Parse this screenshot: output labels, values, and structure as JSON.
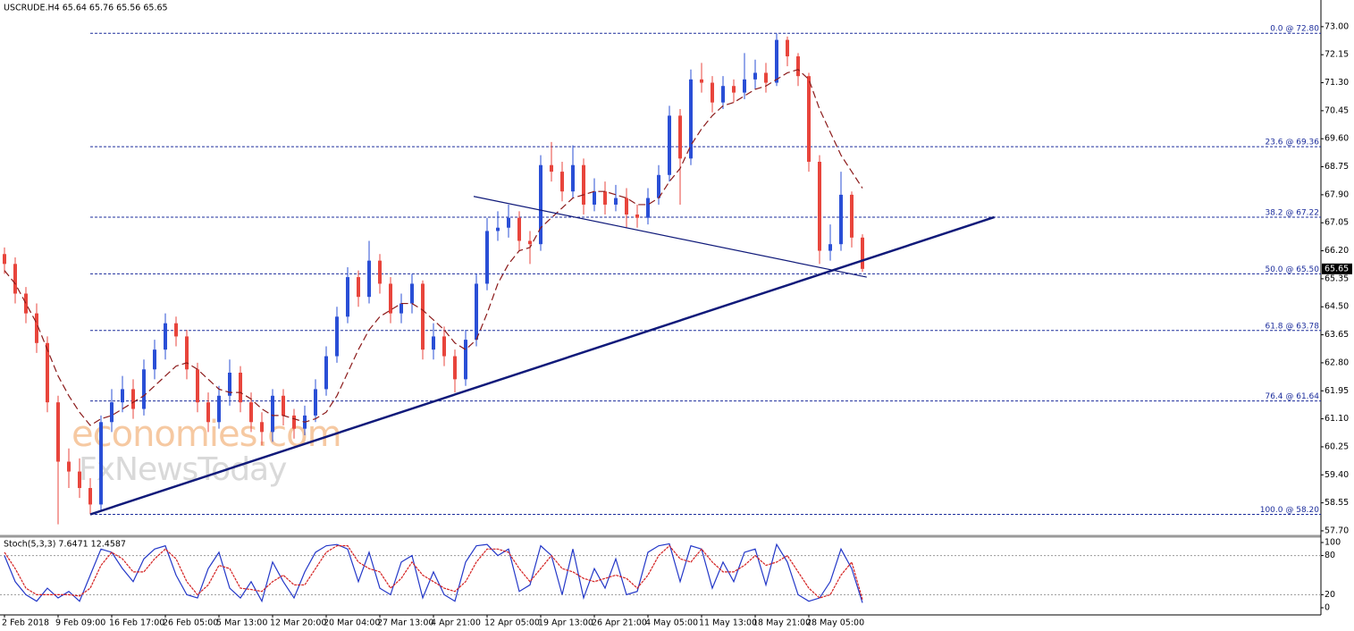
{
  "chart_data": {
    "type": "candlestick",
    "title": "USCRUDE.H4  65.64 65.76 65.56 65.65",
    "categories": [
      "2 Feb 2018",
      null,
      null,
      null,
      null,
      "9 Feb 09:00",
      null,
      null,
      null,
      null,
      "16 Feb 17:00",
      null,
      null,
      null,
      null,
      "26 Feb 05:00",
      null,
      null,
      null,
      null,
      "5 Mar 13:00",
      null,
      null,
      null,
      null,
      "12 Mar 20:00",
      null,
      null,
      null,
      null,
      "20 Mar 04:00",
      null,
      null,
      null,
      null,
      "27 Mar 13:00",
      null,
      null,
      null,
      null,
      "4 Apr 21:00",
      null,
      null,
      null,
      null,
      "12 Apr 05:00",
      null,
      null,
      null,
      null,
      "19 Apr 13:00",
      null,
      null,
      null,
      null,
      "26 Apr 21:00",
      null,
      null,
      null,
      null,
      "4 May 05:00",
      null,
      null,
      null,
      null,
      "11 May 13:00",
      null,
      null,
      null,
      null,
      "18 May 21:00",
      null,
      null,
      null,
      null,
      "28 May 05:00",
      null,
      null,
      null,
      null,
      null
    ],
    "open": [
      66.1,
      65.8,
      64.9,
      64.3,
      63.4,
      61.6,
      59.8,
      59.5,
      59.0,
      58.5,
      61.0,
      61.6,
      62.0,
      61.4,
      62.6,
      63.2,
      64.0,
      63.6,
      62.6,
      61.6,
      61.0,
      61.8,
      62.5,
      61.6,
      61.0,
      60.7,
      61.8,
      61.2,
      60.8,
      61.2,
      62.0,
      63.0,
      64.2,
      65.4,
      64.8,
      65.9,
      65.2,
      64.3,
      64.6,
      65.2,
      63.2,
      63.6,
      63.0,
      62.3,
      63.5,
      65.2,
      66.8,
      66.9,
      67.2,
      66.5,
      66.4,
      68.8,
      68.6,
      68.0,
      68.8,
      67.6,
      68.0,
      67.6,
      67.8,
      67.3,
      67.2,
      67.8,
      68.5,
      70.3,
      69.0,
      71.4,
      71.3,
      70.7,
      71.2,
      71.0,
      71.4,
      71.6,
      71.3,
      72.6,
      72.1,
      71.5,
      68.9,
      66.2,
      66.4,
      67.9,
      66.6
    ],
    "high": [
      66.3,
      66.0,
      65.1,
      64.6,
      63.6,
      61.8,
      60.2,
      59.9,
      59.3,
      61.2,
      62.0,
      62.4,
      62.3,
      62.9,
      63.5,
      64.3,
      64.2,
      63.8,
      62.8,
      61.9,
      62.1,
      62.9,
      62.7,
      61.9,
      61.3,
      62.0,
      62.0,
      61.4,
      61.5,
      62.3,
      63.3,
      64.5,
      65.7,
      65.6,
      66.5,
      66.1,
      65.4,
      64.9,
      65.5,
      65.3,
      64.0,
      63.9,
      63.2,
      63.8,
      65.5,
      67.2,
      67.4,
      67.6,
      67.4,
      66.8,
      69.1,
      69.5,
      68.9,
      69.4,
      69.0,
      68.4,
      68.3,
      68.2,
      68.1,
      67.6,
      68.1,
      68.8,
      70.6,
      70.5,
      71.7,
      71.9,
      71.5,
      71.5,
      71.4,
      72.2,
      72.0,
      71.9,
      72.8,
      72.7,
      72.2,
      71.6,
      69.1,
      67.0,
      68.6,
      68.0,
      66.7
    ],
    "low": [
      65.5,
      64.6,
      64.0,
      63.1,
      61.3,
      57.9,
      59.0,
      58.7,
      58.2,
      58.3,
      60.7,
      61.3,
      61.1,
      61.2,
      62.3,
      62.9,
      63.3,
      62.3,
      61.3,
      60.7,
      60.8,
      61.5,
      61.3,
      60.7,
      60.3,
      60.4,
      60.9,
      60.5,
      60.6,
      61.0,
      61.8,
      62.8,
      64.0,
      64.5,
      64.6,
      64.9,
      64.0,
      64.0,
      64.3,
      62.9,
      62.9,
      62.7,
      61.9,
      62.1,
      63.3,
      65.0,
      66.5,
      66.6,
      66.2,
      65.8,
      66.2,
      68.3,
      67.7,
      67.8,
      67.3,
      67.4,
      67.3,
      67.4,
      66.9,
      66.9,
      67.0,
      67.6,
      68.3,
      67.6,
      68.8,
      71.0,
      70.4,
      70.5,
      70.7,
      70.8,
      71.1,
      71.0,
      71.2,
      71.8,
      71.2,
      68.6,
      65.8,
      65.9,
      66.2,
      66.3,
      65.56
    ],
    "close": [
      65.8,
      64.9,
      64.3,
      63.4,
      61.6,
      59.8,
      59.5,
      59.0,
      58.5,
      61.0,
      61.6,
      62.0,
      61.4,
      62.6,
      63.2,
      64.0,
      63.6,
      62.6,
      61.6,
      61.0,
      61.8,
      62.5,
      61.6,
      61.0,
      60.7,
      61.8,
      61.2,
      60.8,
      61.2,
      62.0,
      63.0,
      64.2,
      65.4,
      64.8,
      65.9,
      65.2,
      64.3,
      64.6,
      65.2,
      63.2,
      63.6,
      63.0,
      62.3,
      63.5,
      65.2,
      66.8,
      66.9,
      67.2,
      66.5,
      66.4,
      68.8,
      68.6,
      68.0,
      68.8,
      67.6,
      68.0,
      67.6,
      67.8,
      67.3,
      67.2,
      67.8,
      68.5,
      70.3,
      69.0,
      71.4,
      71.3,
      70.7,
      71.2,
      71.0,
      71.4,
      71.6,
      71.3,
      72.6,
      72.1,
      71.5,
      68.9,
      66.2,
      66.4,
      67.9,
      66.6,
      65.65
    ],
    "colors": {
      "up": "#2a4fd6",
      "down": "#e8453c"
    },
    "ylim": [
      57.59,
      73.81
    ],
    "yticks": [
      {
        "value": 73.0,
        "label": "73.00"
      },
      {
        "value": 72.15,
        "label": "72.15"
      },
      {
        "value": 71.3,
        "label": "71.30"
      },
      {
        "value": 70.45,
        "label": "70.45"
      },
      {
        "value": 69.6,
        "label": "69.60"
      },
      {
        "value": 68.75,
        "label": "68.75"
      },
      {
        "value": 67.9,
        "label": "67.90"
      },
      {
        "value": 67.05,
        "label": "67.05"
      },
      {
        "value": 66.2,
        "label": "66.20"
      },
      {
        "value": 65.35,
        "label": "65.35"
      },
      {
        "value": 64.5,
        "label": "64.50"
      },
      {
        "value": 63.65,
        "label": "63.65"
      },
      {
        "value": 62.8,
        "label": "62.80"
      },
      {
        "value": 61.95,
        "label": "61.95"
      },
      {
        "value": 61.1,
        "label": "61.10"
      },
      {
        "value": 60.25,
        "label": "60.25"
      },
      {
        "value": 59.4,
        "label": "59.40"
      },
      {
        "value": 58.55,
        "label": "58.55"
      },
      {
        "value": 57.7,
        "label": "57.70"
      }
    ],
    "ma": {
      "color": "#8b1a1a",
      "values": [
        65.6,
        65.2,
        64.6,
        64.0,
        63.2,
        62.4,
        61.8,
        61.3,
        60.9,
        61.1,
        61.2,
        61.4,
        61.6,
        61.8,
        62.1,
        62.4,
        62.7,
        62.8,
        62.6,
        62.3,
        62.0,
        61.9,
        61.9,
        61.7,
        61.4,
        61.2,
        61.2,
        61.1,
        61.0,
        61.1,
        61.3,
        61.8,
        62.5,
        63.2,
        63.8,
        64.2,
        64.4,
        64.6,
        64.6,
        64.4,
        64.1,
        63.8,
        63.4,
        63.2,
        63.5,
        64.3,
        65.2,
        65.8,
        66.2,
        66.3,
        66.9,
        67.2,
        67.5,
        67.8,
        67.9,
        68.0,
        68.0,
        67.9,
        67.8,
        67.6,
        67.6,
        67.8,
        68.3,
        68.7,
        69.4,
        69.9,
        70.3,
        70.6,
        70.7,
        70.9,
        71.1,
        71.2,
        71.4,
        71.6,
        71.7,
        71.4,
        70.5,
        69.8,
        69.1,
        68.6,
        68.1
      ]
    },
    "fib_color": "#1c2d9c",
    "fib_levels": [
      {
        "value": 72.8,
        "label": "0.0 @ 72.80"
      },
      {
        "value": 69.36,
        "label": "23.6 @ 69.36"
      },
      {
        "value": 67.22,
        "label": "38.2 @ 67.22"
      },
      {
        "value": 65.5,
        "label": "50.0 @ 65.50"
      },
      {
        "value": 63.78,
        "label": "61.8 @ 63.78"
      },
      {
        "value": 61.64,
        "label": "76.4 @ 61.64"
      },
      {
        "value": 58.2,
        "label": "100.0 @ 58.20"
      }
    ],
    "trendlines": [
      {
        "x": [
          8,
          92.3
        ],
        "y": [
          58.2,
          67.22
        ],
        "width": 2.5,
        "color": "#101a7a"
      },
      {
        "x": [
          43.75,
          80.4
        ],
        "y": [
          67.85,
          65.4
        ],
        "width": 1.2,
        "color": "#101a7a"
      }
    ],
    "last_price": 65.65,
    "watermark": [
      "economies.com",
      "FxNewsToday"
    ],
    "indicator": {
      "type": "line",
      "title": "Stoch(5,3,3) 7.6471 12.4587",
      "ylim": [
        -11,
        109.6
      ],
      "yticks": [
        100,
        80,
        20,
        0
      ],
      "levels": [
        80,
        20
      ],
      "series": [
        {
          "color": "#2438c8",
          "values": [
            80,
            40,
            20,
            10,
            30,
            15,
            25,
            10,
            50,
            90,
            85,
            60,
            40,
            75,
            90,
            95,
            50,
            20,
            15,
            60,
            85,
            30,
            15,
            40,
            10,
            70,
            40,
            15,
            55,
            85,
            95,
            97,
            90,
            40,
            85,
            30,
            20,
            70,
            80,
            15,
            55,
            20,
            10,
            70,
            95,
            97,
            80,
            90,
            25,
            35,
            95,
            80,
            20,
            90,
            15,
            60,
            30,
            75,
            20,
            25,
            85,
            95,
            98,
            40,
            95,
            90,
            30,
            70,
            40,
            85,
            90,
            35,
            97,
            70,
            20,
            10,
            15,
            40,
            90,
            60,
            7.6471
          ]
        },
        {
          "color": "#d42020",
          "values": [
            85,
            60,
            30,
            20,
            20,
            20,
            20,
            18,
            30,
            65,
            85,
            75,
            55,
            55,
            75,
            90,
            75,
            40,
            20,
            35,
            65,
            60,
            30,
            28,
            25,
            40,
            50,
            35,
            35,
            60,
            85,
            95,
            95,
            70,
            60,
            55,
            30,
            45,
            70,
            50,
            40,
            30,
            25,
            40,
            70,
            90,
            90,
            85,
            60,
            40,
            60,
            80,
            60,
            55,
            45,
            40,
            45,
            50,
            45,
            30,
            50,
            80,
            95,
            75,
            70,
            90,
            70,
            55,
            55,
            65,
            80,
            65,
            70,
            80,
            55,
            30,
            15,
            20,
            50,
            70,
            12.4587
          ]
        }
      ]
    }
  }
}
